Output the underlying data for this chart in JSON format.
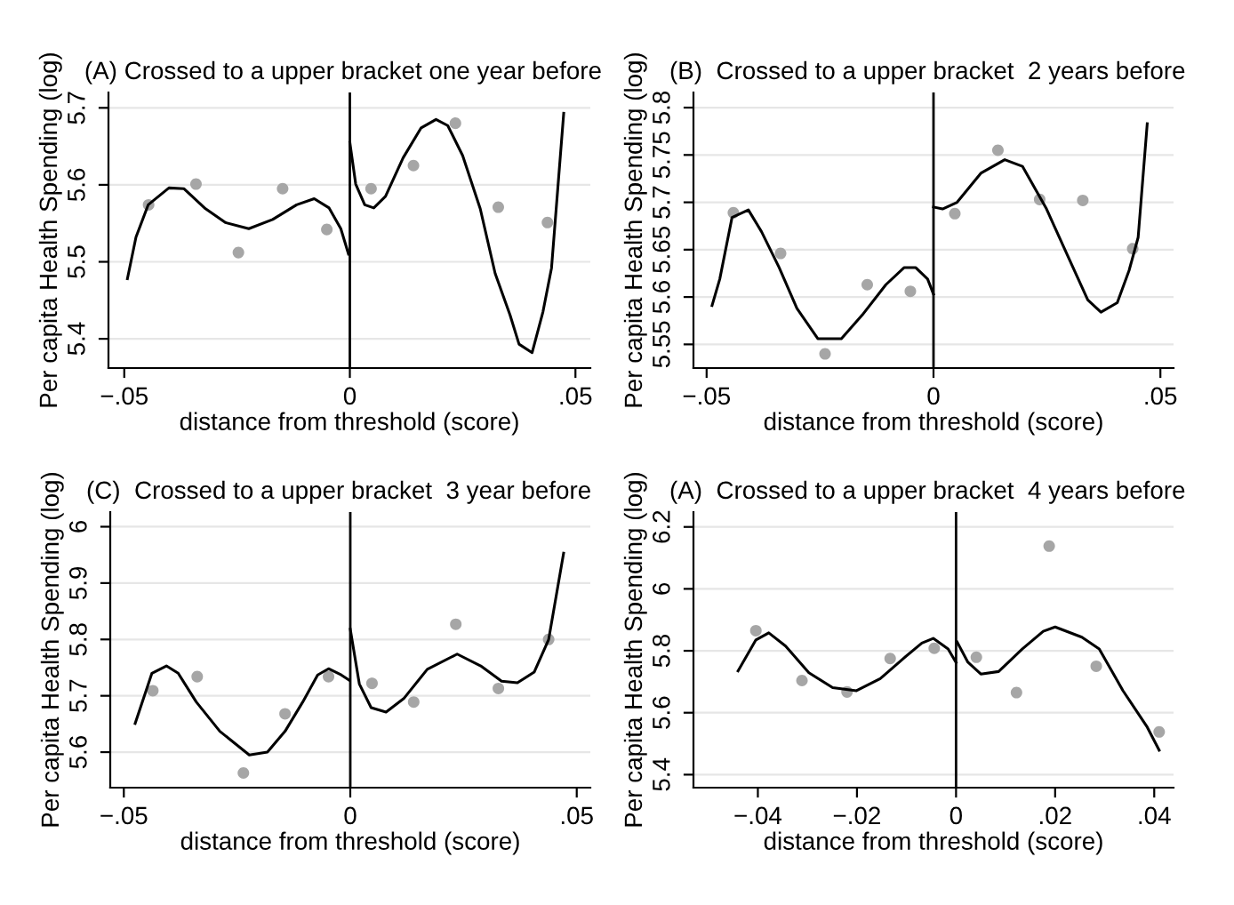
{
  "chart_data": [
    {
      "type": "scatter",
      "title": "(A) Crossed to a upper bracket one year before",
      "xlabel": "distance from threshold (score)",
      "ylabel": "Per capita Health Spending (log)",
      "xlim": [
        -0.0535,
        0.0533
      ],
      "ylim": [
        5.362,
        5.72
      ],
      "xticks": [
        {
          "value": -0.05,
          "label": "−.05"
        },
        0,
        {
          "value": 0.05,
          "label": ".05"
        }
      ],
      "yticks": [
        5.4,
        5.5,
        5.6,
        5.7
      ],
      "grid": "y",
      "ref_lines": [
        {
          "axis": "x",
          "value": 0,
          "color": "#000000"
        }
      ],
      "series": [
        {
          "type": "scatter",
          "marker": "circle",
          "color": "#a6a6a6",
          "x": [
            -0.0446,
            -0.0341,
            -0.0247,
            -0.0149,
            -0.0051,
            0.0047,
            0.0141,
            0.0234,
            0.0329,
            0.0438
          ],
          "values": [
            5.574,
            5.601,
            5.512,
            5.595,
            5.542,
            5.595,
            5.625,
            5.68,
            5.571,
            5.551
          ]
        },
        {
          "type": "line",
          "color": "#000000",
          "x": [
            -0.0493,
            -0.0474,
            -0.0447,
            -0.0401,
            -0.0368,
            -0.0322,
            -0.0276,
            -0.0224,
            -0.0171,
            -0.0118,
            -0.0079,
            -0.0046,
            -0.002,
            -0.0003
          ],
          "values": [
            5.478,
            5.532,
            5.574,
            5.596,
            5.595,
            5.57,
            5.551,
            5.543,
            5.555,
            5.574,
            5.582,
            5.57,
            5.543,
            5.51
          ]
        },
        {
          "type": "line",
          "color": "#000000",
          "x": [
            0.0,
            0.0013,
            0.0033,
            0.0053,
            0.0079,
            0.0118,
            0.0158,
            0.0191,
            0.0217,
            0.025,
            0.0289,
            0.0322,
            0.0355,
            0.0375,
            0.0404,
            0.0428,
            0.0447,
            0.0474
          ],
          "values": [
            5.655,
            5.601,
            5.574,
            5.57,
            5.585,
            5.635,
            5.674,
            5.685,
            5.677,
            5.638,
            5.569,
            5.485,
            5.431,
            5.393,
            5.382,
            5.435,
            5.492,
            5.693
          ]
        }
      ]
    },
    {
      "type": "scatter",
      "title": "(B)  Crossed to a upper bracket  2 years before",
      "xlabel": "distance from threshold (score)",
      "ylabel": "Per capita Health Spending (log)",
      "xlim": [
        -0.0529,
        0.0529
      ],
      "ylim": [
        5.525,
        5.816
      ],
      "xticks": [
        {
          "value": -0.05,
          "label": "−.05"
        },
        0,
        {
          "value": 0.05,
          "label": ".05"
        }
      ],
      "yticks": [
        5.55,
        5.6,
        5.65,
        5.7,
        5.75,
        5.8
      ],
      "grid": "y",
      "ref_lines": [
        {
          "axis": "x",
          "value": 0,
          "color": "#000000"
        }
      ],
      "series": [
        {
          "type": "scatter",
          "marker": "circle",
          "color": "#a6a6a6",
          "x": [
            -0.0441,
            -0.0337,
            -0.0239,
            -0.0146,
            -0.0051,
            0.0047,
            0.0142,
            0.0234,
            0.0329,
            0.0439
          ],
          "values": [
            5.689,
            5.646,
            5.54,
            5.613,
            5.606,
            5.688,
            5.755,
            5.703,
            5.702,
            5.651
          ]
        },
        {
          "type": "line",
          "color": "#000000",
          "x": [
            -0.0488,
            -0.0471,
            -0.0444,
            -0.0408,
            -0.0379,
            -0.034,
            -0.0301,
            -0.0255,
            -0.0203,
            -0.0157,
            -0.0105,
            -0.0065,
            -0.0039,
            -0.0013,
            0.0
          ],
          "values": [
            5.591,
            5.619,
            5.684,
            5.692,
            5.669,
            5.631,
            5.588,
            5.556,
            5.556,
            5.581,
            5.613,
            5.631,
            5.631,
            5.619,
            5.603
          ]
        },
        {
          "type": "line",
          "color": "#000000",
          "x": [
            0.0,
            0.002,
            0.0052,
            0.0105,
            0.0157,
            0.0196,
            0.0248,
            0.0301,
            0.034,
            0.0369,
            0.0405,
            0.0431,
            0.0451,
            0.0471
          ],
          "values": [
            5.695,
            5.693,
            5.7,
            5.731,
            5.745,
            5.738,
            5.694,
            5.638,
            5.597,
            5.584,
            5.594,
            5.628,
            5.663,
            5.783
          ]
        }
      ]
    },
    {
      "type": "scatter",
      "title": "(C)  Crossed to a upper bracket  3 year before",
      "xlabel": "distance from threshold (score)",
      "ylabel": "Per capita Health Spending (log)",
      "xlim": [
        -0.053,
        0.053
      ],
      "ylim": [
        5.537,
        6.026
      ],
      "xticks": [
        {
          "value": -0.05,
          "label": "−.05"
        },
        0,
        {
          "value": 0.05,
          "label": ".05"
        }
      ],
      "yticks": [
        5.6,
        5.7,
        5.8,
        5.9,
        6
      ],
      "grid": "y",
      "ref_lines": [
        {
          "axis": "x",
          "value": 0,
          "color": "#000000"
        }
      ],
      "series": [
        {
          "type": "scatter",
          "marker": "circle",
          "color": "#a6a6a6",
          "x": [
            -0.0436,
            -0.0338,
            -0.0236,
            -0.0144,
            -0.0048,
            0.0048,
            0.014,
            0.0233,
            0.0327,
            0.0438
          ],
          "values": [
            5.709,
            5.734,
            5.563,
            5.668,
            5.734,
            5.722,
            5.689,
            5.827,
            5.713,
            5.8
          ]
        },
        {
          "type": "line",
          "color": "#000000",
          "x": [
            -0.0475,
            -0.0438,
            -0.0406,
            -0.038,
            -0.034,
            -0.0288,
            -0.0223,
            -0.0183,
            -0.0144,
            -0.0105,
            -0.0072,
            -0.0048,
            -0.002,
            -0.0003
          ],
          "values": [
            5.651,
            5.74,
            5.753,
            5.74,
            5.689,
            5.637,
            5.595,
            5.6,
            5.637,
            5.689,
            5.737,
            5.748,
            5.737,
            5.728
          ]
        },
        {
          "type": "line",
          "color": "#000000",
          "x": [
            0.0,
            0.002,
            0.0046,
            0.0079,
            0.0118,
            0.017,
            0.0236,
            0.0288,
            0.0334,
            0.0369,
            0.0406,
            0.0438,
            0.0471
          ],
          "values": [
            5.818,
            5.721,
            5.679,
            5.671,
            5.695,
            5.747,
            5.774,
            5.753,
            5.726,
            5.723,
            5.742,
            5.8,
            5.953
          ]
        }
      ]
    },
    {
      "type": "scatter",
      "title": "(A)  Crossed to a upper bracket  4 years before",
      "xlabel": "distance from threshold (score)",
      "ylabel": "Per capita Health Spending (log)",
      "xlim": [
        -0.053,
        0.0439
      ],
      "ylim": [
        5.358,
        6.248
      ],
      "xticks": [
        {
          "value": -0.04,
          "label": "−.04"
        },
        {
          "value": -0.02,
          "label": "−.02"
        },
        0,
        {
          "value": 0.02,
          "label": ".02"
        },
        {
          "value": 0.04,
          "label": ".04"
        }
      ],
      "yticks": [
        5.4,
        5.6,
        5.8,
        6,
        6.2
      ],
      "grid": "y",
      "ref_lines": [
        {
          "axis": "x",
          "value": 0,
          "color": "#000000"
        }
      ],
      "series": [
        {
          "type": "scatter",
          "marker": "circle",
          "color": "#a6a6a6",
          "x": [
            -0.0404,
            -0.0311,
            -0.022,
            -0.0133,
            -0.0044,
            0.0041,
            0.0122,
            0.0188,
            0.0283,
            0.041
          ],
          "values": [
            5.865,
            5.704,
            5.667,
            5.775,
            5.808,
            5.779,
            5.665,
            6.138,
            5.75,
            5.538
          ]
        },
        {
          "type": "line",
          "color": "#000000",
          "x": [
            -0.044,
            -0.0404,
            -0.0378,
            -0.0344,
            -0.0297,
            -0.0249,
            -0.0201,
            -0.0153,
            -0.0105,
            -0.0069,
            -0.0046,
            -0.0016,
            0.0
          ],
          "values": [
            5.735,
            5.835,
            5.858,
            5.815,
            5.729,
            5.681,
            5.671,
            5.71,
            5.777,
            5.825,
            5.84,
            5.806,
            5.762
          ]
        },
        {
          "type": "line",
          "color": "#000000",
          "x": [
            0.0002,
            0.0024,
            0.005,
            0.0086,
            0.0134,
            0.0176,
            0.02,
            0.0254,
            0.0289,
            0.0337,
            0.0385,
            0.041
          ],
          "values": [
            5.829,
            5.763,
            5.725,
            5.733,
            5.806,
            5.863,
            5.877,
            5.844,
            5.806,
            5.671,
            5.556,
            5.479
          ]
        }
      ]
    }
  ]
}
